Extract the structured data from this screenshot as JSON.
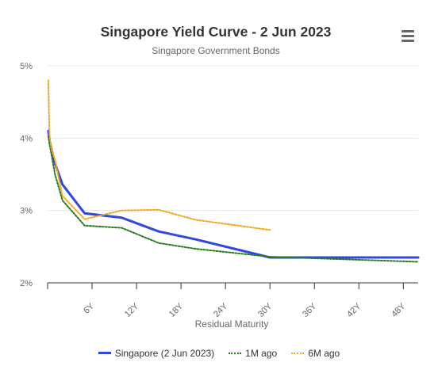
{
  "chart_data": {
    "type": "line",
    "title": "Singapore Yield Curve - 2 Jun 2023",
    "subtitle": "Singapore Government Bonds",
    "xlabel": "Residual Maturity",
    "ylabel": "",
    "xlim": [
      0,
      50
    ],
    "ylim": [
      2,
      5
    ],
    "y_ticks": [
      {
        "value": 2,
        "label": "2%"
      },
      {
        "value": 3,
        "label": "3%"
      },
      {
        "value": 4,
        "label": "4%"
      },
      {
        "value": 5,
        "label": "5%"
      }
    ],
    "x_ticks": [
      {
        "value": 6,
        "label": "6Y"
      },
      {
        "value": 12,
        "label": "12Y"
      },
      {
        "value": 18,
        "label": "18Y"
      },
      {
        "value": 24,
        "label": "24Y"
      },
      {
        "value": 30,
        "label": "30Y"
      },
      {
        "value": 36,
        "label": "36Y"
      },
      {
        "value": 42,
        "label": "42Y"
      },
      {
        "value": 48,
        "label": "48Y"
      }
    ],
    "grid": {
      "horizontal": true,
      "vertical": false
    },
    "legend_position": "bottom",
    "series": [
      {
        "name": "Singapore (2 Jun 2023)",
        "color": "#3047e3",
        "style": "solid",
        "points": [
          [
            0.1,
            4.1
          ],
          [
            0.25,
            3.98
          ],
          [
            0.5,
            3.85
          ],
          [
            1,
            3.65
          ],
          [
            2,
            3.36
          ],
          [
            5,
            2.96
          ],
          [
            10,
            2.9
          ],
          [
            15,
            2.71
          ],
          [
            20,
            2.6
          ],
          [
            30,
            2.35
          ],
          [
            50,
            2.35
          ]
        ]
      },
      {
        "name": "1M ago",
        "color": "#2a7a1f",
        "style": "dotted",
        "points": [
          [
            0.1,
            4.03
          ],
          [
            0.25,
            3.92
          ],
          [
            0.5,
            3.78
          ],
          [
            1,
            3.5
          ],
          [
            2,
            3.14
          ],
          [
            5,
            2.79
          ],
          [
            10,
            2.76
          ],
          [
            15,
            2.55
          ],
          [
            20,
            2.47
          ],
          [
            30,
            2.36
          ],
          [
            50,
            2.29
          ]
        ]
      },
      {
        "name": "6M ago",
        "color": "#f5a623",
        "style": "dotted",
        "points": [
          [
            0.1,
            4.8
          ],
          [
            0.25,
            4.05
          ],
          [
            0.5,
            3.85
          ],
          [
            1,
            3.7
          ],
          [
            2,
            3.2
          ],
          [
            5,
            2.88
          ],
          [
            10,
            3.0
          ],
          [
            15,
            3.01
          ],
          [
            20,
            2.87
          ],
          [
            30,
            2.73
          ]
        ]
      }
    ]
  }
}
